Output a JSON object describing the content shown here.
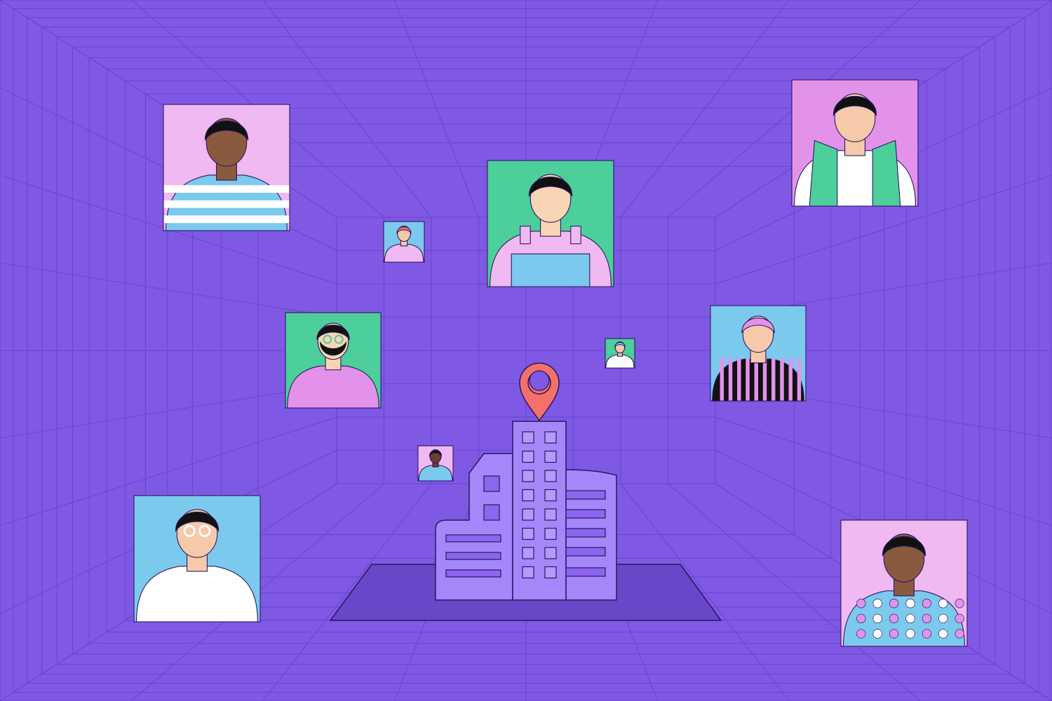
{
  "scene": {
    "description_colors": {
      "background": "#7f59e4",
      "grid_line": "#6a44cf",
      "ground": "#6847c9",
      "building": "#a587fa",
      "building_window": "#8e65ee",
      "outline": "#2a1660",
      "pin": "#f4706a"
    },
    "portraits": [
      {
        "bg": "#f0b9f2",
        "skin": "#8a5a3e",
        "hair": "#111111",
        "shirt": "#7cc9ee",
        "accent": "#ffffff",
        "style": "stripes"
      },
      {
        "bg": "#e392ea",
        "skin": "#f6c9aa",
        "hair": "#111111",
        "shirt": "#ffffff",
        "accent": "#4ccf9a",
        "style": "scarf"
      },
      {
        "bg": "#4ccf9a",
        "skin": "#f9d5b6",
        "hair": "#111111",
        "shirt": "#f0b9f2",
        "accent": "#7cc9ee",
        "style": "overalls"
      },
      {
        "bg": "#7cc9ee",
        "skin": "#f6c9aa",
        "hair": "#f4706a",
        "shirt": "#f0b9f2",
        "accent": "#a587fa",
        "style": "plain"
      },
      {
        "bg": "#4ccf9a",
        "skin": "#f9d5b6",
        "hair": "#111111",
        "shirt": "#e392ea",
        "accent": "#111111",
        "style": "beard"
      },
      {
        "bg": "#7cc9ee",
        "skin": "#f6c9aa",
        "hair": "#e392ea",
        "shirt": "#111111",
        "accent": "#e392ea",
        "style": "stripes-v"
      },
      {
        "bg": "#4ccf9a",
        "skin": "#f6c9aa",
        "hair": "#7cc9ee",
        "shirt": "#ffffff",
        "accent": "#7cc9ee",
        "style": "plain"
      },
      {
        "bg": "#f0b9f2",
        "skin": "#6b4030",
        "hair": "#111111",
        "shirt": "#7cc9ee",
        "accent": "#e392ea",
        "style": "plain"
      },
      {
        "bg": "#7cc9ee",
        "skin": "#f6c9aa",
        "hair": "#111111",
        "shirt": "#ffffff",
        "accent": "#e392ea",
        "style": "glasses"
      },
      {
        "bg": "#f0b9f2",
        "skin": "#8a5a3e",
        "hair": "#111111",
        "shirt": "#7cc9ee",
        "accent": "#e392ea",
        "style": "dots"
      }
    ],
    "icons": [
      "location-pin-icon",
      "office-building-icon"
    ]
  }
}
